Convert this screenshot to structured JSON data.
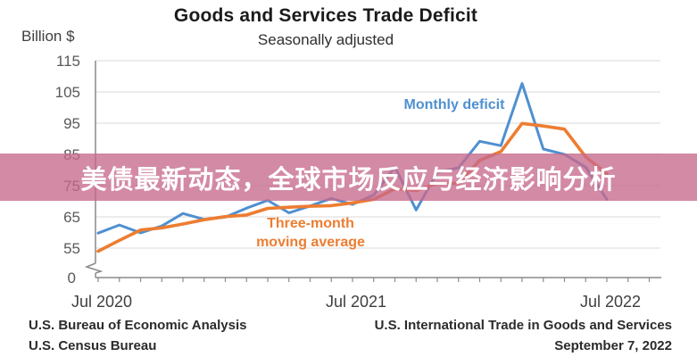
{
  "header": {
    "title": "Goods and Services Trade Deficit",
    "subtitle": "Seasonally adjusted",
    "y_axis_unit": "Billion $"
  },
  "overlay_banner": {
    "text": "美债最新动态，全球市场反应与经济影响分析",
    "background_rgba": "rgba(198,105,140,0.78)",
    "text_color": "#ffffff"
  },
  "footer": {
    "left_line1": "U.S. Bureau of Economic Analysis",
    "left_line2": "U.S. Census Bureau",
    "right_line1": "U.S. International Trade in Goods and Services",
    "right_line2": "September 7, 2022"
  },
  "chart_data": {
    "type": "line",
    "title": "Goods and Services Trade Deficit",
    "subtitle": "Seasonally adjusted",
    "ylabel": "Billion $",
    "grid": true,
    "ylim": [
      55,
      115
    ],
    "y_axis_break_to_zero": true,
    "zero_label": "0",
    "y_ticks": [
      115,
      105,
      95,
      85,
      75,
      65,
      55
    ],
    "x_tick_labels": [
      {
        "label": "Jul 2020",
        "month_index": 0
      },
      {
        "label": "Jul 2021",
        "month_index": 12
      },
      {
        "label": "Jul 2022",
        "month_index": 24
      }
    ],
    "months": [
      "Jul 2020",
      "Aug 2020",
      "Sep 2020",
      "Oct 2020",
      "Nov 2020",
      "Dec 2020",
      "Jan 2021",
      "Feb 2021",
      "Mar 2021",
      "Apr 2021",
      "May 2021",
      "Jun 2021",
      "Jul 2021",
      "Aug 2021",
      "Sep 2021",
      "Oct 2021",
      "Nov 2021",
      "Dec 2021",
      "Jan 2022",
      "Feb 2022",
      "Mar 2022",
      "Apr 2022",
      "May 2022",
      "Jun 2022",
      "Jul 2022"
    ],
    "series": [
      {
        "name": "Monthly deficit",
        "label_lines": [
          "Monthly deficit"
        ],
        "color": "#4f90d0",
        "values": [
          59.8,
          62.4,
          59.9,
          62.1,
          66.1,
          64.2,
          64.9,
          67.8,
          70.3,
          66.3,
          68.5,
          70.9,
          69.0,
          72.0,
          81.0,
          67.2,
          79.3,
          80.7,
          89.2,
          87.8,
          107.7,
          86.7,
          85.0,
          80.9,
          70.6
        ]
      },
      {
        "name": "Three-month moving average",
        "label_lines": [
          "Three-month",
          "moving average"
        ],
        "color": "#ed7d31",
        "values": [
          54.0,
          57.5,
          60.8,
          61.5,
          62.7,
          64.1,
          65.1,
          65.6,
          67.7,
          68.1,
          68.4,
          68.6,
          69.5,
          70.6,
          74.0,
          73.4,
          75.8,
          75.7,
          83.1,
          85.9,
          94.9,
          94.1,
          93.1,
          84.2,
          78.8
        ]
      }
    ],
    "legend_position": "inline-annotations",
    "colors": {
      "gridline": "#d9d9d9",
      "axis": "#8a8a8a",
      "y_tick_text": "#595959",
      "x_tick_text": "#3f3f3f"
    }
  }
}
